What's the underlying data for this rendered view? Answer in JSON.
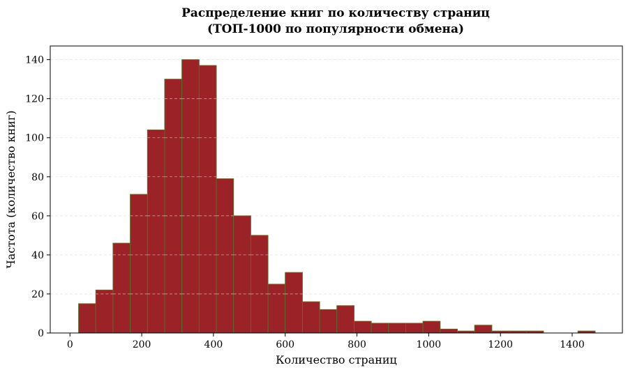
{
  "chart_data": {
    "type": "bar",
    "title": "Распределение книг по количеству страниц",
    "subtitle": "(ТОП-1000 по популярности обмена)",
    "xlabel": "Количество страниц",
    "ylabel": "Частота (количество книг)",
    "xlim": [
      -55,
      1540
    ],
    "ylim": [
      0,
      147
    ],
    "xticks": [
      0,
      200,
      400,
      600,
      800,
      1000,
      1200,
      1400
    ],
    "yticks": [
      0,
      20,
      40,
      60,
      80,
      100,
      120,
      140
    ],
    "grid": true,
    "bar_color": "#9b2226",
    "edge_color": "#5a6b2e",
    "bin_edges": [
      24,
      72,
      120,
      168,
      216,
      264,
      312,
      360,
      408,
      456,
      504,
      552,
      600,
      648,
      696,
      744,
      792,
      840,
      888,
      936,
      984,
      1032,
      1080,
      1128,
      1176,
      1224,
      1272,
      1320,
      1368,
      1416,
      1464
    ],
    "values": [
      15,
      22,
      46,
      71,
      104,
      130,
      140,
      137,
      79,
      60,
      50,
      25,
      31,
      16,
      12,
      14,
      6,
      5,
      5,
      5,
      6,
      2,
      1,
      4,
      1,
      1,
      1,
      0,
      0,
      1
    ]
  }
}
